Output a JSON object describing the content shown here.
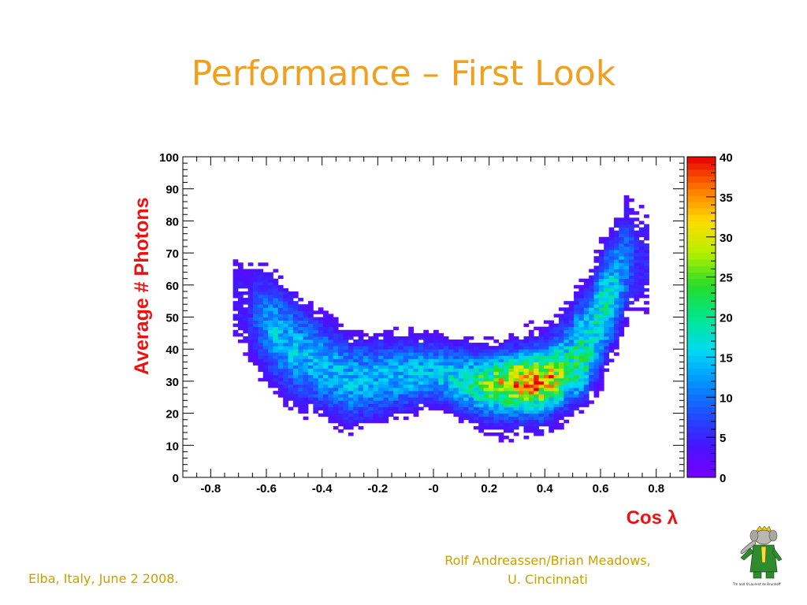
{
  "slide": {
    "title": "Performance – First Look",
    "footer_left": "Elba, Italy, June 2 2008.",
    "footer_right_line1": "Rolf Andreassen/Brian Meadows,",
    "footer_right_line2": "U. Cincinnati",
    "logo_caption": "Tm and ©Laurent de Brunhoff"
  },
  "chart_data": {
    "type": "heatmap",
    "title": "",
    "xlabel": "Cos λ",
    "ylabel": "Average # Photons",
    "xlim": [
      -0.9,
      0.9
    ],
    "ylim": [
      0,
      100
    ],
    "x_ticks": [
      "-0.8",
      "-0.6",
      "-0.4",
      "-0.2",
      "-0",
      "0.2",
      "0.4",
      "0.6",
      "0.8"
    ],
    "x_tick_values": [
      -0.8,
      -0.6,
      -0.4,
      -0.2,
      0,
      0.2,
      0.4,
      0.6,
      0.8
    ],
    "y_ticks": [
      "0",
      "10",
      "20",
      "30",
      "40",
      "50",
      "60",
      "70",
      "80",
      "90",
      "100"
    ],
    "y_tick_values": [
      0,
      10,
      20,
      30,
      40,
      50,
      60,
      70,
      80,
      90,
      100
    ],
    "colorbar": {
      "min": 0,
      "max": 40,
      "ticks": [
        "0",
        "5",
        "10",
        "15",
        "20",
        "25",
        "30",
        "35",
        "40"
      ],
      "tick_values": [
        0,
        5,
        10,
        15,
        20,
        25,
        30,
        35,
        40
      ]
    },
    "x_range_populated": [
      -0.72,
      0.78
    ],
    "ridge_description_points": [
      {
        "x": -0.7,
        "y": 55
      },
      {
        "x": -0.5,
        "y": 40
      },
      {
        "x": -0.3,
        "y": 30
      },
      {
        "x": 0.0,
        "y": 33
      },
      {
        "x": 0.2,
        "y": 28
      },
      {
        "x": 0.4,
        "y": 30
      },
      {
        "x": 0.55,
        "y": 42
      },
      {
        "x": 0.7,
        "y": 68
      }
    ],
    "peak_density": {
      "x": 0.35,
      "y": 30,
      "value": 40
    },
    "grid": false,
    "legend": "colorbar-right"
  }
}
